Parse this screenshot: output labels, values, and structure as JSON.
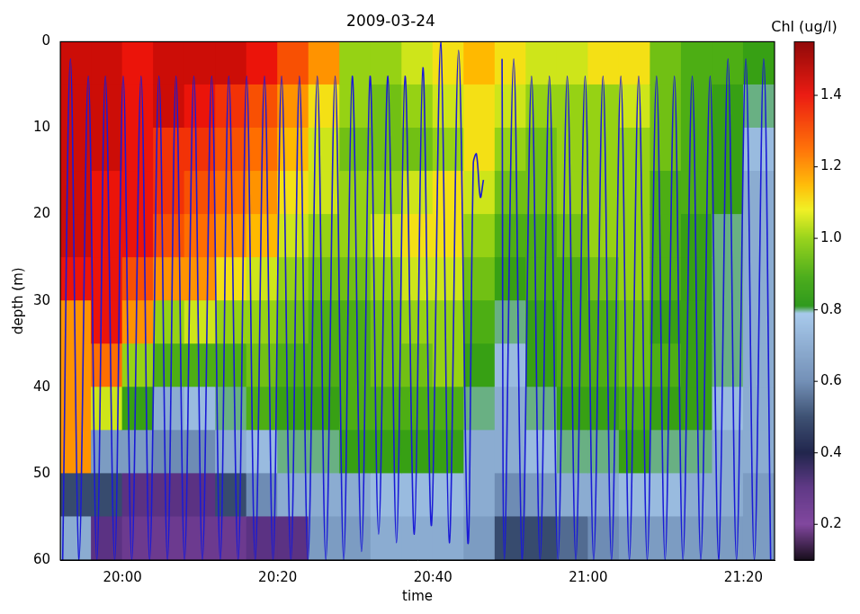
{
  "chart_data": {
    "type": "heatmap",
    "title": "2009-03-24",
    "x_label": "time",
    "y_label": "depth (m)",
    "xlim": [
      1192,
      1284
    ],
    "xticks": [
      {
        "value": 1200,
        "label": "20:00"
      },
      {
        "value": 1220,
        "label": "20:20"
      },
      {
        "value": 1240,
        "label": "20:40"
      },
      {
        "value": 1260,
        "label": "21:00"
      },
      {
        "value": 1280,
        "label": "21:20"
      }
    ],
    "ylim": [
      0,
      60
    ],
    "yticks": [
      0,
      10,
      20,
      30,
      40,
      50,
      60
    ],
    "grid": false,
    "colorbar": {
      "label": "Chl (ug/l)",
      "range": [
        0.1,
        1.55
      ],
      "ticks": [
        0.2,
        0.4,
        0.6,
        0.8,
        {
          "value": 1,
          "label": "1.0"
        },
        1.2,
        1.4
      ]
    },
    "heatmap": {
      "x_edges": [
        1192,
        1196,
        1200,
        1204,
        1208,
        1212,
        1216,
        1220,
        1224,
        1228,
        1232,
        1236,
        1240,
        1244,
        1248,
        1252,
        1256,
        1260,
        1264,
        1268,
        1272,
        1276,
        1280,
        1284
      ],
      "y_edges": [
        0,
        5,
        10,
        15,
        20,
        25,
        30,
        35,
        40,
        45,
        50,
        55,
        60
      ],
      "cells_by_column": [
        [
          1.45,
          1.45,
          1.45,
          1.45,
          1.45,
          1.4,
          1.2,
          1.2,
          1.2,
          1.2,
          0.5,
          0.7
        ],
        [
          1.45,
          1.45,
          1.45,
          1.4,
          1.4,
          1.4,
          1.4,
          1.25,
          1.05,
          0.65,
          0.5,
          0.3
        ],
        [
          1.4,
          1.4,
          1.4,
          1.4,
          1.4,
          1.3,
          1.2,
          1.0,
          0.85,
          0.65,
          0.3,
          0.25
        ],
        [
          1.45,
          1.45,
          1.35,
          1.35,
          1.3,
          1.2,
          1.0,
          0.9,
          0.7,
          0.6,
          0.3,
          0.25
        ],
        [
          1.45,
          1.4,
          1.35,
          1.3,
          1.25,
          1.2,
          1.05,
          0.9,
          0.75,
          0.6,
          0.3,
          0.25
        ],
        [
          1.45,
          1.35,
          1.3,
          1.25,
          1.2,
          1.1,
          1.0,
          0.9,
          0.8,
          0.7,
          0.5,
          0.25
        ],
        [
          1.4,
          1.3,
          1.25,
          1.2,
          1.15,
          1.05,
          1.0,
          0.95,
          0.9,
          0.75,
          0.6,
          0.3
        ],
        [
          1.3,
          1.2,
          1.15,
          1.1,
          1.05,
          1.0,
          0.95,
          0.9,
          0.85,
          0.8,
          0.7,
          0.3
        ],
        [
          1.2,
          1.1,
          1.05,
          1.05,
          1.0,
          0.95,
          0.9,
          0.9,
          0.85,
          0.8,
          0.7,
          0.65
        ],
        [
          1.0,
          1.0,
          0.95,
          1.0,
          1.0,
          0.95,
          0.9,
          0.9,
          0.9,
          0.85,
          0.7,
          0.65
        ],
        [
          1.0,
          0.95,
          0.95,
          1.0,
          1.05,
          1.0,
          0.95,
          0.95,
          0.9,
          0.85,
          0.75,
          0.7
        ],
        [
          1.05,
          1.0,
          0.95,
          1.05,
          1.1,
          1.05,
          1.0,
          0.95,
          0.9,
          0.85,
          0.75,
          0.7
        ],
        [
          1.1,
          1.05,
          1.0,
          1.1,
          1.1,
          1.05,
          1.0,
          1.0,
          0.9,
          0.85,
          0.75,
          0.7
        ],
        [
          1.15,
          1.1,
          1.1,
          1.05,
          1.0,
          0.95,
          0.9,
          0.85,
          0.8,
          0.7,
          0.7,
          0.65
        ],
        [
          1.1,
          1.05,
          1.0,
          0.95,
          0.9,
          0.85,
          0.8,
          0.75,
          0.7,
          0.7,
          0.6,
          0.5
        ],
        [
          1.05,
          1.0,
          0.95,
          0.95,
          0.9,
          0.9,
          0.85,
          0.85,
          0.8,
          0.75,
          0.65,
          0.5
        ],
        [
          1.05,
          1.0,
          1.0,
          1.0,
          0.95,
          0.9,
          0.9,
          0.9,
          0.85,
          0.8,
          0.7,
          0.55
        ],
        [
          1.1,
          1.0,
          1.0,
          1.0,
          1.0,
          0.95,
          0.9,
          0.9,
          0.85,
          0.8,
          0.7,
          0.6
        ],
        [
          1.1,
          1.05,
          1.0,
          1.0,
          1.0,
          1.0,
          0.95,
          0.95,
          0.9,
          0.85,
          0.75,
          0.65
        ],
        [
          0.95,
          0.95,
          0.95,
          0.9,
          0.9,
          0.9,
          0.85,
          0.9,
          0.85,
          0.8,
          0.75,
          0.65
        ],
        [
          0.9,
          0.9,
          0.9,
          0.9,
          0.85,
          0.85,
          0.85,
          0.85,
          0.85,
          0.8,
          0.7,
          0.65
        ],
        [
          0.9,
          0.85,
          0.85,
          0.85,
          0.8,
          0.8,
          0.8,
          0.8,
          0.75,
          0.7,
          0.7,
          0.65
        ],
        [
          0.85,
          0.8,
          0.75,
          0.7,
          0.7,
          0.7,
          0.7,
          0.7,
          0.7,
          0.7,
          0.65,
          0.65
        ]
      ]
    },
    "series": [
      {
        "type": "line",
        "color": "#1a1ad6",
        "line_style": "solid",
        "x": [
          1192.3,
          1193.3,
          1194.4,
          1195.6,
          1196.7,
          1197.8,
          1199.0,
          1200.1,
          1201.2,
          1202.4,
          1203.5,
          1204.7,
          1205.8,
          1206.9,
          1208.0,
          1209.2,
          1210.3,
          1211.5,
          1212.6,
          1213.7,
          1214.9,
          1216.0,
          1217.1,
          1218.3,
          1219.4,
          1220.5,
          1221.7,
          1222.8,
          1223.9,
          1225.1,
          1226.2,
          1227.4,
          1228.5,
          1229.6,
          1230.8,
          1231.9,
          1233.0,
          1234.2,
          1235.3,
          1236.4,
          1237.6,
          1238.7,
          1239.8,
          1241.0,
          1242.1,
          1243.3,
          1244.5,
          1245.2,
          1245.6,
          1246.1,
          1246.5,
          1247.7,
          1248.9,
          1249.2,
          1250.4,
          1251.5,
          1252.7,
          1253.8,
          1255.0,
          1256.1,
          1257.3,
          1258.4,
          1259.6,
          1260.7,
          1261.9,
          1263.0,
          1264.2,
          1265.3,
          1266.5,
          1267.6,
          1268.8,
          1269.9,
          1271.1,
          1272.2,
          1273.4,
          1274.5,
          1275.7,
          1276.8,
          1278.0,
          1279.1,
          1280.3,
          1281.4,
          1282.6,
          1283.5
        ],
        "values": [
          60,
          2,
          60,
          4,
          60,
          4,
          60,
          4,
          60,
          4,
          60,
          4,
          60,
          4,
          60,
          4,
          60,
          4,
          60,
          4,
          60,
          4,
          60,
          4,
          60,
          4,
          60,
          4,
          60,
          4,
          60,
          4,
          60,
          4,
          59,
          4,
          57,
          4,
          58,
          4,
          57,
          3,
          56,
          0,
          58,
          1,
          58,
          14,
          13,
          18,
          16,
          null,
          2,
          60,
          2,
          60,
          4,
          60,
          4,
          60,
          4,
          60,
          4,
          60,
          4,
          60,
          4,
          60,
          4,
          60,
          4,
          60,
          4,
          60,
          4,
          60,
          4,
          60,
          2,
          60,
          2,
          60,
          2,
          60
        ]
      }
    ]
  }
}
